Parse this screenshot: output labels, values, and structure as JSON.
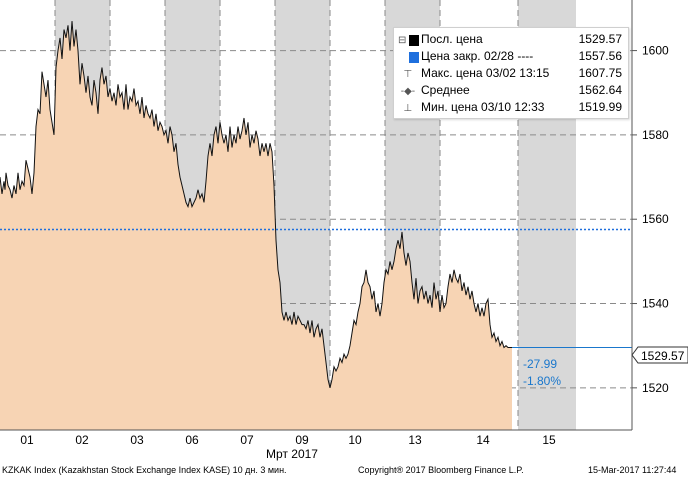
{
  "chart_data": {
    "type": "area",
    "ylim": [
      1510,
      1612
    ],
    "yticks": [
      1520,
      1540,
      1560,
      1580,
      1600
    ],
    "x_ticks": [
      "01",
      "02",
      "03",
      "06",
      "07",
      "09",
      "10",
      "13",
      "14",
      "15"
    ],
    "xlabel": "Мрт 2017",
    "series": [
      {
        "name": "Посл. цена",
        "points": [
          [
            0,
            1570
          ],
          [
            2,
            1566
          ],
          [
            4,
            1569
          ],
          [
            5,
            1567
          ],
          [
            6,
            1571
          ],
          [
            8,
            1568
          ],
          [
            10,
            1567
          ],
          [
            12,
            1565
          ],
          [
            14,
            1568
          ],
          [
            16,
            1566
          ],
          [
            18,
            1571
          ],
          [
            20,
            1567
          ],
          [
            22,
            1569
          ],
          [
            24,
            1568
          ],
          [
            26,
            1574
          ],
          [
            28,
            1572
          ],
          [
            30,
            1570
          ],
          [
            32,
            1566
          ],
          [
            34,
            1571
          ],
          [
            36,
            1582
          ],
          [
            38,
            1586
          ],
          [
            40,
            1585
          ],
          [
            42,
            1595
          ],
          [
            44,
            1592
          ],
          [
            46,
            1589
          ],
          [
            48,
            1593
          ],
          [
            50,
            1586
          ],
          [
            52,
            1583
          ],
          [
            54,
            1580
          ],
          [
            56,
            1596
          ],
          [
            58,
            1600
          ],
          [
            60,
            1603
          ],
          [
            62,
            1598
          ],
          [
            64,
            1605
          ],
          [
            66,
            1603
          ],
          [
            68,
            1606
          ],
          [
            70,
            1600
          ],
          [
            72,
            1607
          ],
          [
            74,
            1601
          ],
          [
            76,
            1605
          ],
          [
            78,
            1600
          ],
          [
            80,
            1592
          ],
          [
            82,
            1597
          ],
          [
            84,
            1594
          ],
          [
            86,
            1590
          ],
          [
            88,
            1594
          ],
          [
            90,
            1589
          ],
          [
            92,
            1587
          ],
          [
            94,
            1593
          ],
          [
            96,
            1590
          ],
          [
            98,
            1585
          ],
          [
            100,
            1593
          ],
          [
            102,
            1596
          ],
          [
            104,
            1592
          ],
          [
            106,
            1594
          ],
          [
            108,
            1589
          ],
          [
            110,
            1591
          ],
          [
            112,
            1588
          ],
          [
            114,
            1590
          ],
          [
            116,
            1587
          ],
          [
            118,
            1592
          ],
          [
            120,
            1589
          ],
          [
            122,
            1590
          ],
          [
            124,
            1586
          ],
          [
            126,
            1592
          ],
          [
            128,
            1586
          ],
          [
            130,
            1589
          ],
          [
            132,
            1588
          ],
          [
            134,
            1591
          ],
          [
            136,
            1587
          ],
          [
            138,
            1588
          ],
          [
            140,
            1585
          ],
          [
            142,
            1589
          ],
          [
            144,
            1584
          ],
          [
            146,
            1587
          ],
          [
            148,
            1585
          ],
          [
            150,
            1584
          ],
          [
            152,
            1586
          ],
          [
            154,
            1582
          ],
          [
            156,
            1585
          ],
          [
            158,
            1581
          ],
          [
            160,
            1583
          ],
          [
            162,
            1582
          ],
          [
            164,
            1580
          ],
          [
            166,
            1581
          ],
          [
            168,
            1578
          ],
          [
            170,
            1582
          ],
          [
            172,
            1580
          ],
          [
            174,
            1576
          ],
          [
            176,
            1578
          ],
          [
            178,
            1573
          ],
          [
            180,
            1570
          ],
          [
            182,
            1568
          ],
          [
            184,
            1566
          ],
          [
            186,
            1564
          ],
          [
            188,
            1563
          ],
          [
            190,
            1565
          ],
          [
            192,
            1563
          ],
          [
            194,
            1564
          ],
          [
            196,
            1565
          ],
          [
            198,
            1567
          ],
          [
            200,
            1565
          ],
          [
            202,
            1566
          ],
          [
            204,
            1564
          ],
          [
            206,
            1569
          ],
          [
            208,
            1575
          ],
          [
            210,
            1578
          ],
          [
            212,
            1575
          ],
          [
            214,
            1580
          ],
          [
            216,
            1582
          ],
          [
            218,
            1578
          ],
          [
            220,
            1583
          ],
          [
            222,
            1580
          ],
          [
            224,
            1578
          ],
          [
            226,
            1580
          ],
          [
            228,
            1576
          ],
          [
            230,
            1582
          ],
          [
            232,
            1577
          ],
          [
            234,
            1580
          ],
          [
            236,
            1578
          ],
          [
            238,
            1582
          ],
          [
            240,
            1579
          ],
          [
            242,
            1581
          ],
          [
            244,
            1584
          ],
          [
            246,
            1580
          ],
          [
            248,
            1583
          ],
          [
            250,
            1577
          ],
          [
            252,
            1580
          ],
          [
            254,
            1578
          ],
          [
            256,
            1581
          ],
          [
            258,
            1579
          ],
          [
            260,
            1575
          ],
          [
            262,
            1578
          ],
          [
            264,
            1576
          ],
          [
            266,
            1578
          ],
          [
            268,
            1575
          ],
          [
            270,
            1578
          ],
          [
            272,
            1576
          ],
          [
            274,
            1568
          ],
          [
            276,
            1555
          ],
          [
            278,
            1548
          ],
          [
            280,
            1545
          ],
          [
            282,
            1538
          ],
          [
            284,
            1536
          ],
          [
            286,
            1538
          ],
          [
            288,
            1536
          ],
          [
            290,
            1537
          ],
          [
            292,
            1535
          ],
          [
            294,
            1538
          ],
          [
            296,
            1535
          ],
          [
            298,
            1537
          ],
          [
            300,
            1536
          ],
          [
            302,
            1535
          ],
          [
            304,
            1535
          ],
          [
            306,
            1534
          ],
          [
            308,
            1536
          ],
          [
            310,
            1533
          ],
          [
            312,
            1536
          ],
          [
            314,
            1532
          ],
          [
            316,
            1534
          ],
          [
            318,
            1535
          ],
          [
            320,
            1532
          ],
          [
            322,
            1534
          ],
          [
            324,
            1530
          ],
          [
            326,
            1526
          ],
          [
            328,
            1522
          ],
          [
            330,
            1519.99
          ],
          [
            332,
            1522
          ],
          [
            334,
            1525
          ],
          [
            336,
            1524
          ],
          [
            338,
            1525
          ],
          [
            340,
            1527
          ],
          [
            342,
            1526
          ],
          [
            344,
            1528
          ],
          [
            346,
            1527
          ],
          [
            348,
            1528
          ],
          [
            350,
            1530
          ],
          [
            352,
            1533
          ],
          [
            354,
            1536
          ],
          [
            356,
            1535
          ],
          [
            358,
            1538
          ],
          [
            360,
            1540
          ],
          [
            362,
            1544
          ],
          [
            364,
            1545
          ],
          [
            366,
            1548
          ],
          [
            368,
            1545
          ],
          [
            370,
            1544
          ],
          [
            372,
            1541
          ],
          [
            374,
            1543
          ],
          [
            376,
            1538
          ],
          [
            378,
            1540
          ],
          [
            380,
            1537
          ],
          [
            382,
            1540
          ],
          [
            384,
            1545
          ],
          [
            386,
            1548
          ],
          [
            388,
            1547
          ],
          [
            390,
            1550
          ],
          [
            392,
            1548
          ],
          [
            394,
            1550
          ],
          [
            396,
            1553
          ],
          [
            398,
            1555
          ],
          [
            400,
            1553
          ],
          [
            402,
            1557
          ],
          [
            404,
            1552
          ],
          [
            406,
            1549
          ],
          [
            408,
            1552
          ],
          [
            410,
            1550
          ],
          [
            412,
            1545
          ],
          [
            414,
            1541
          ],
          [
            416,
            1546
          ],
          [
            418,
            1540
          ],
          [
            420,
            1543
          ],
          [
            422,
            1544
          ],
          [
            424,
            1541
          ],
          [
            426,
            1543
          ],
          [
            428,
            1540
          ],
          [
            430,
            1542
          ],
          [
            432,
            1539
          ],
          [
            434,
            1545
          ],
          [
            436,
            1541
          ],
          [
            438,
            1543
          ],
          [
            440,
            1538
          ],
          [
            442,
            1542
          ],
          [
            444,
            1539
          ],
          [
            446,
            1540
          ],
          [
            448,
            1544
          ],
          [
            450,
            1547
          ],
          [
            452,
            1545
          ],
          [
            454,
            1548
          ],
          [
            456,
            1546
          ],
          [
            458,
            1545
          ],
          [
            460,
            1547
          ],
          [
            462,
            1543
          ],
          [
            464,
            1545
          ],
          [
            466,
            1542
          ],
          [
            468,
            1544
          ],
          [
            470,
            1541
          ],
          [
            472,
            1543
          ],
          [
            474,
            1540
          ],
          [
            476,
            1538
          ],
          [
            478,
            1540
          ],
          [
            480,
            1537
          ],
          [
            482,
            1539
          ],
          [
            484,
            1537
          ],
          [
            486,
            1540
          ],
          [
            488,
            1541
          ],
          [
            490,
            1535
          ],
          [
            492,
            1532
          ],
          [
            494,
            1533
          ],
          [
            496,
            1531
          ],
          [
            498,
            1532
          ],
          [
            500,
            1530
          ],
          [
            502,
            1531
          ],
          [
            504,
            1529.57
          ],
          [
            506,
            1530
          ],
          [
            508,
            1529.57
          ],
          [
            510,
            1529.57
          ],
          [
            512,
            1529.57
          ]
        ]
      }
    ],
    "reference_lines": [
      {
        "name": "Цена закр. 02/28",
        "y": 1557.56
      }
    ],
    "last_price_label": "1529.57",
    "change_abs": "-27.99",
    "change_pct": "-1.80%",
    "colors": {
      "area": "#f7d4b4",
      "line": "#111111",
      "reference": "#1e6fdd",
      "last": "#1a77cc",
      "shade": "#d8d8d8"
    },
    "shaded_days": [
      "02",
      "06",
      "09",
      "13",
      "15"
    ],
    "grid": true
  },
  "legend": {
    "rows": [
      {
        "icon": "black-square-icon",
        "label": "Посл. цена",
        "value": "1529.57"
      },
      {
        "icon": "blue-square-icon",
        "label": "Цена закр. 02/28 ----",
        "value": "1557.56"
      },
      {
        "icon": "max-marker-icon",
        "label": "Макс. цена 03/02 13:15",
        "value": "1607.75"
      },
      {
        "icon": "avg-marker-icon",
        "label": "Среднее",
        "value": "1562.64"
      },
      {
        "icon": "min-marker-icon",
        "label": "Мин. цена 03/10 12:33",
        "value": "1519.99"
      }
    ]
  },
  "footer": {
    "left": "KZKAK Index (Kazakhstan Stock Exchange Index KASE) 10 дн. 3 мин.",
    "center": "Copyright® 2017 Bloomberg Finance L.P.",
    "right": "15-Mar-2017 11:27:44"
  }
}
